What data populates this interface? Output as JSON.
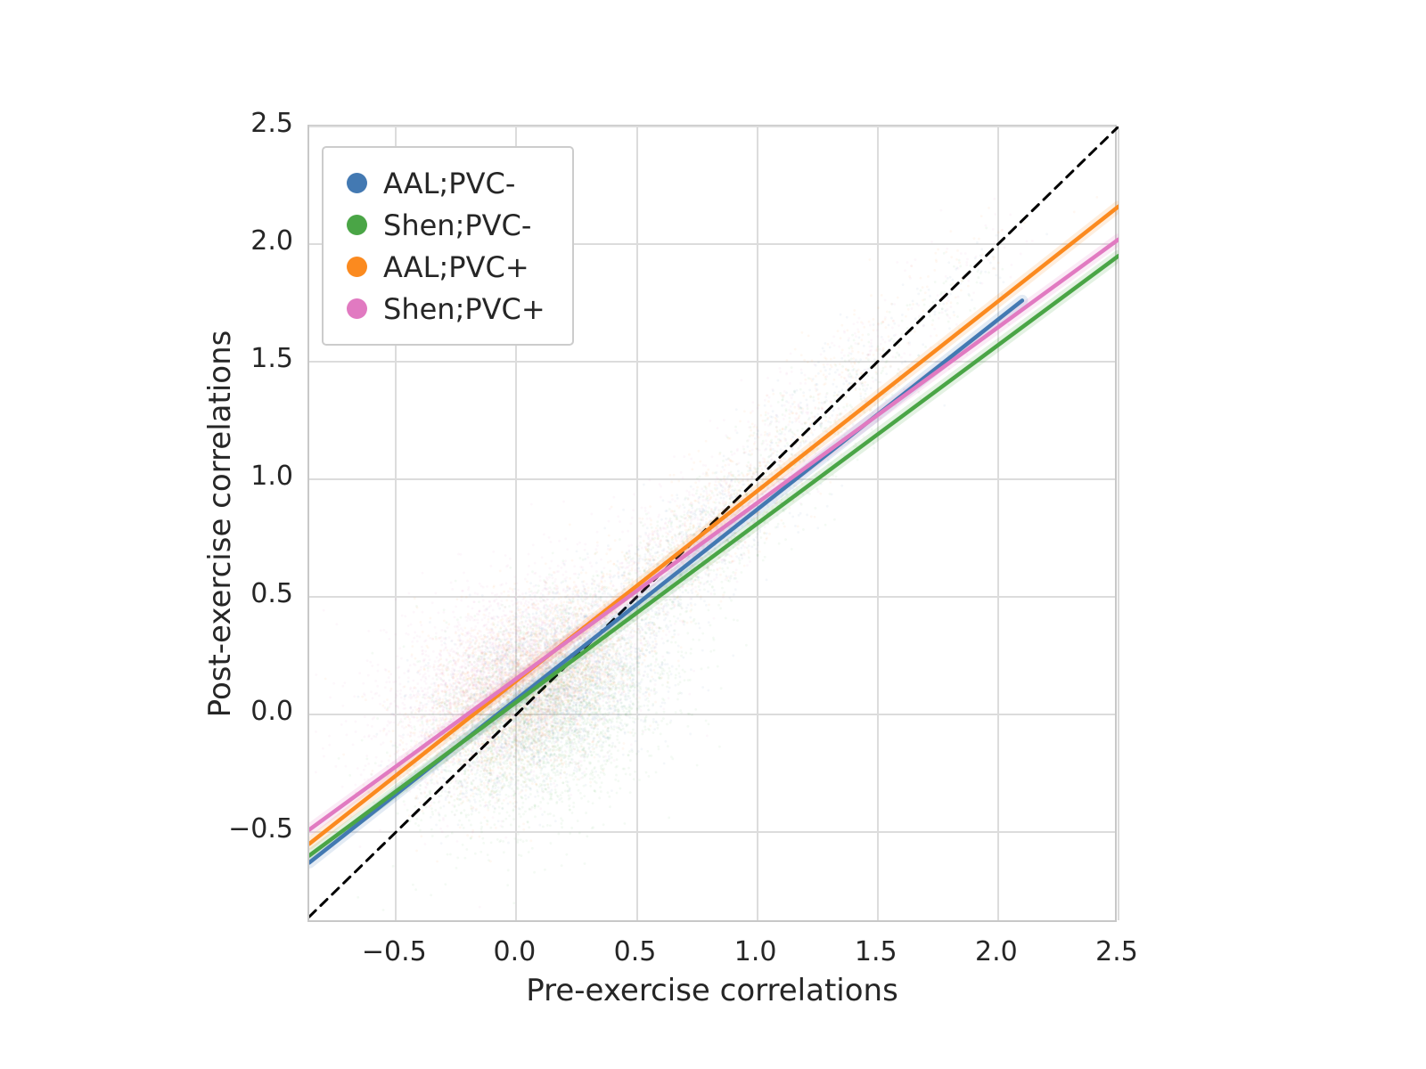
{
  "chart_data": {
    "type": "scatter",
    "title": "",
    "xlabel": "Pre-exercise correlations",
    "ylabel": "Post-exercise correlations",
    "xlim": [
      -0.86,
      2.5
    ],
    "ylim": [
      -0.89,
      2.5
    ],
    "xticks": [
      -0.5,
      0.0,
      0.5,
      1.0,
      1.5,
      2.0,
      2.5
    ],
    "yticks": [
      -0.5,
      0.0,
      0.5,
      1.0,
      1.5,
      2.0,
      2.5
    ],
    "grid": true,
    "legend_position": "upper-left",
    "identity_line": {
      "from": [
        -0.86,
        -0.86
      ],
      "to": [
        2.5,
        2.5
      ],
      "color": "#000000",
      "dashed": true
    },
    "series": [
      {
        "name": "AAL;PVC-",
        "color": "#4379b2",
        "regression_line": {
          "from": [
            -0.86,
            -0.63
          ],
          "to": [
            2.1,
            1.76
          ]
        },
        "point_cloud": [
          {
            "n": 3000,
            "cx": 0.12,
            "cy": 0.1,
            "sx": 0.23,
            "sy": 0.2,
            "rho": 0.45
          },
          {
            "n": 600,
            "cx": 0.75,
            "cy": 0.72,
            "sx": 0.22,
            "sy": 0.2,
            "rho": 0.75
          },
          {
            "n": 220,
            "cx": 1.25,
            "cy": 1.28,
            "sx": 0.22,
            "sy": 0.2,
            "rho": 0.8
          },
          {
            "n": 50,
            "cx": 1.8,
            "cy": 1.8,
            "sx": 0.18,
            "sy": 0.15,
            "rho": 0.8
          }
        ]
      },
      {
        "name": "Shen;PVC-",
        "color": "#4aa546",
        "regression_line": {
          "from": [
            -0.86,
            -0.6
          ],
          "to": [
            2.5,
            1.95
          ]
        },
        "point_cloud": [
          {
            "n": 3200,
            "cx": 0.12,
            "cy": 0.0,
            "sx": 0.25,
            "sy": 0.24,
            "rho": 0.4
          },
          {
            "n": 600,
            "cx": 0.75,
            "cy": 0.7,
            "sx": 0.22,
            "sy": 0.2,
            "rho": 0.75
          },
          {
            "n": 220,
            "cx": 1.25,
            "cy": 1.25,
            "sx": 0.22,
            "sy": 0.2,
            "rho": 0.8
          },
          {
            "n": 50,
            "cx": 1.8,
            "cy": 1.75,
            "sx": 0.18,
            "sy": 0.15,
            "rho": 0.8
          }
        ]
      },
      {
        "name": "AAL;PVC+",
        "color": "#fb8a1f",
        "regression_line": {
          "from": [
            -0.86,
            -0.55
          ],
          "to": [
            2.5,
            2.16
          ]
        },
        "point_cloud": [
          {
            "n": 3000,
            "cx": 0.05,
            "cy": 0.12,
            "sx": 0.22,
            "sy": 0.2,
            "rho": 0.45
          },
          {
            "n": 600,
            "cx": 0.78,
            "cy": 0.78,
            "sx": 0.22,
            "sy": 0.2,
            "rho": 0.75
          },
          {
            "n": 220,
            "cx": 1.3,
            "cy": 1.38,
            "sx": 0.22,
            "sy": 0.22,
            "rho": 0.8
          },
          {
            "n": 50,
            "cx": 1.85,
            "cy": 1.9,
            "sx": 0.18,
            "sy": 0.16,
            "rho": 0.8
          }
        ]
      },
      {
        "name": "Shen;PVC+",
        "color": "#e17ac1",
        "regression_line": {
          "from": [
            -0.86,
            -0.49
          ],
          "to": [
            2.5,
            2.02
          ]
        },
        "point_cloud": [
          {
            "n": 3200,
            "cx": -0.05,
            "cy": 0.15,
            "sx": 0.26,
            "sy": 0.22,
            "rho": 0.4
          },
          {
            "n": 600,
            "cx": 0.72,
            "cy": 0.75,
            "sx": 0.24,
            "sy": 0.22,
            "rho": 0.75
          },
          {
            "n": 220,
            "cx": 1.25,
            "cy": 1.33,
            "sx": 0.24,
            "sy": 0.22,
            "rho": 0.8
          },
          {
            "n": 50,
            "cx": 1.8,
            "cy": 1.85,
            "sx": 0.2,
            "sy": 0.17,
            "rho": 0.8
          }
        ]
      }
    ]
  }
}
